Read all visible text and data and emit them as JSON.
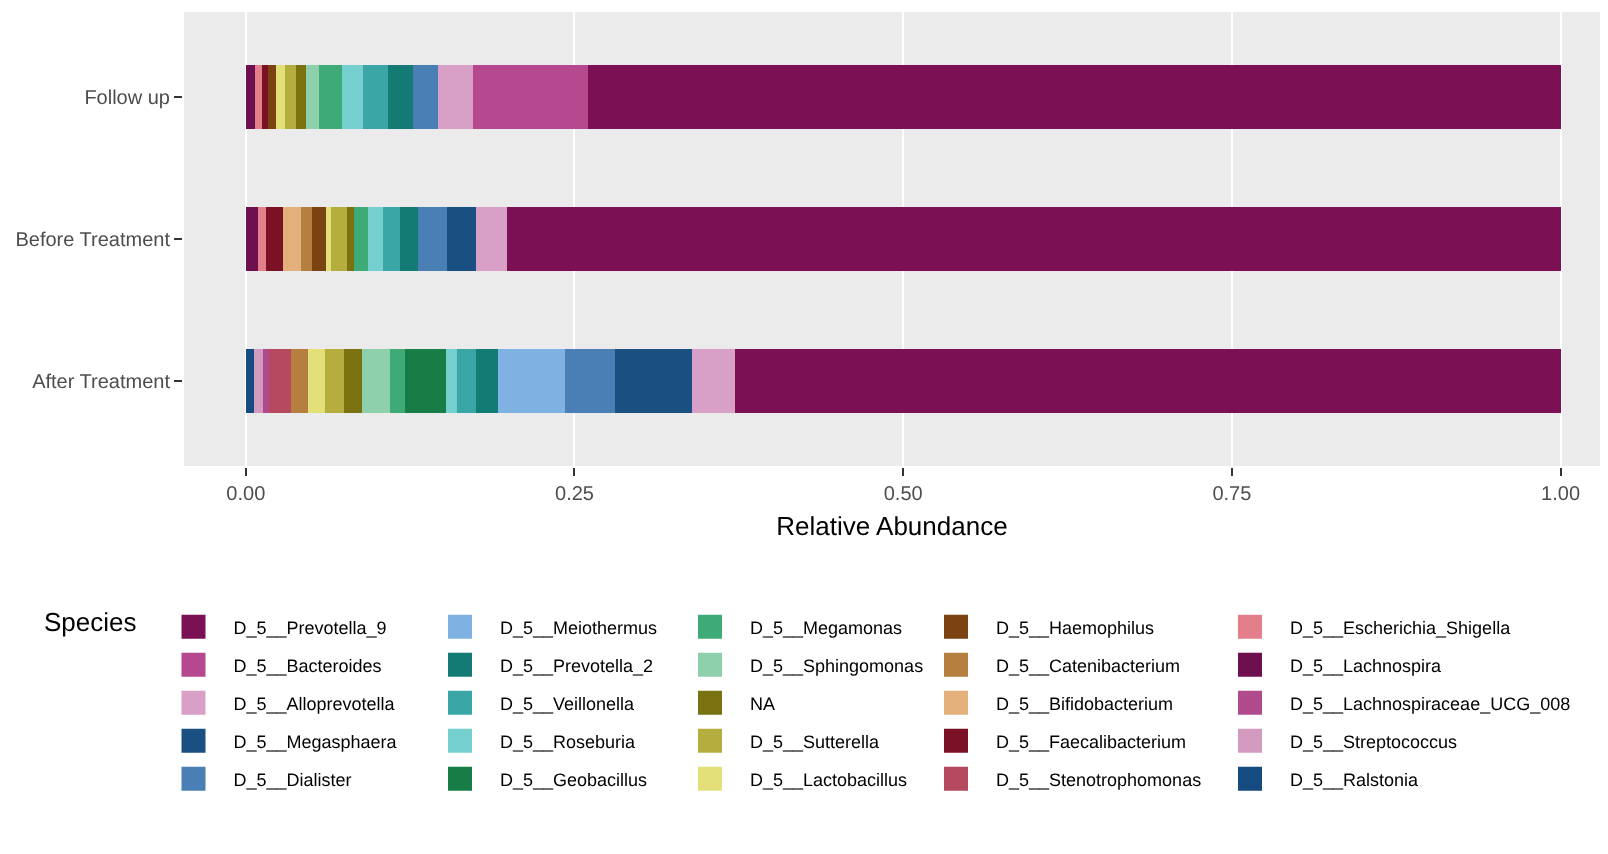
{
  "chart_data": {
    "type": "bar",
    "orientation": "horizontal",
    "stacked": true,
    "xlabel": "Relative Abundance",
    "legend_title": "Species",
    "legend": "bottom",
    "grid": "x",
    "categories": [
      "Follow up",
      "Before Treatment",
      "After Treatment"
    ],
    "xlim": [
      -0.047,
      1.03
    ],
    "xticks": [
      {
        "value": 0,
        "label": "0.00"
      },
      {
        "value": 0.25,
        "label": "0.25"
      },
      {
        "value": 0.5,
        "label": "0.50"
      },
      {
        "value": 0.75,
        "label": "0.75"
      },
      {
        "value": 1,
        "label": "1.00"
      }
    ],
    "series": [
      {
        "name": "D_5__Ralstonia",
        "color": "#154b7e",
        "values": [
          0,
          0,
          0.006
        ]
      },
      {
        "name": "D_5__Streptococcus",
        "color": "#d39ac0",
        "values": [
          0,
          0,
          0.007
        ]
      },
      {
        "name": "D_5__Lachnospiraceae_UCG_008",
        "color": "#b04a8c",
        "values": [
          0,
          0,
          0.005
        ]
      },
      {
        "name": "D_5__Lachnospira",
        "color": "#6e0f4f",
        "values": [
          0.007,
          0.009,
          0
        ]
      },
      {
        "name": "D_5__Escherichia_Shigella",
        "color": "#e37f8b",
        "values": [
          0.005,
          0.006,
          0
        ]
      },
      {
        "name": "D_5__Stenotrophomonas",
        "color": "#b54a5e",
        "values": [
          0,
          0,
          0.016
        ]
      },
      {
        "name": "D_5__Faecalibacterium",
        "color": "#7b1125",
        "values": [
          0.005,
          0.013,
          0
        ]
      },
      {
        "name": "D_5__Bifidobacterium",
        "color": "#e3b07b",
        "values": [
          0,
          0.014,
          0
        ]
      },
      {
        "name": "D_5__Catenibacterium",
        "color": "#b57f3f",
        "values": [
          0,
          0.008,
          0.013
        ]
      },
      {
        "name": "D_5__Haemophilus",
        "color": "#7b4212",
        "values": [
          0.006,
          0.011,
          0
        ]
      },
      {
        "name": "D_5__Lactobacillus",
        "color": "#e3e07a",
        "values": [
          0.007,
          0.004,
          0.013
        ]
      },
      {
        "name": "D_5__Sutterella",
        "color": "#b5ae3f",
        "values": [
          0.008,
          0.012,
          0.015
        ]
      },
      {
        "name": "NA",
        "color": "#7a7210",
        "values": [
          0.008,
          0.005,
          0.013
        ]
      },
      {
        "name": "D_5__Sphingomonas",
        "color": "#8fd0ac",
        "values": [
          0.01,
          0,
          0.022
        ]
      },
      {
        "name": "D_5__Megamonas",
        "color": "#3daa78",
        "values": [
          0.017,
          0.011,
          0.011
        ]
      },
      {
        "name": "D_5__Geobacillus",
        "color": "#177c45",
        "values": [
          0,
          0,
          0.031
        ]
      },
      {
        "name": "D_5__Roseburia",
        "color": "#76cfcf",
        "values": [
          0.016,
          0.011,
          0.009
        ]
      },
      {
        "name": "D_5__Veillonella",
        "color": "#3aa6a6",
        "values": [
          0.019,
          0.013,
          0.014
        ]
      },
      {
        "name": "D_5__Prevotella_2",
        "color": "#147a74",
        "values": [
          0.019,
          0.014,
          0.017
        ]
      },
      {
        "name": "D_5__Meiothermus",
        "color": "#7fb1e3",
        "values": [
          0,
          0,
          0.051
        ]
      },
      {
        "name": "D_5__Dialister",
        "color": "#4a7fb5",
        "values": [
          0.019,
          0.022,
          0.038
        ]
      },
      {
        "name": "D_5__Megasphaera",
        "color": "#1a4f82",
        "values": [
          0,
          0.022,
          0.058
        ]
      },
      {
        "name": "D_5__Alloprevotella",
        "color": "#d8a0c6",
        "values": [
          0.027,
          0.024,
          0.033
        ]
      },
      {
        "name": "D_5__Bacteroides",
        "color": "#b5488f",
        "values": [
          0.087,
          0,
          0
        ]
      },
      {
        "name": "D_5__Prevotella_9",
        "color": "#7b1154",
        "values": [
          0.74,
          0.801,
          0.628
        ]
      }
    ]
  }
}
